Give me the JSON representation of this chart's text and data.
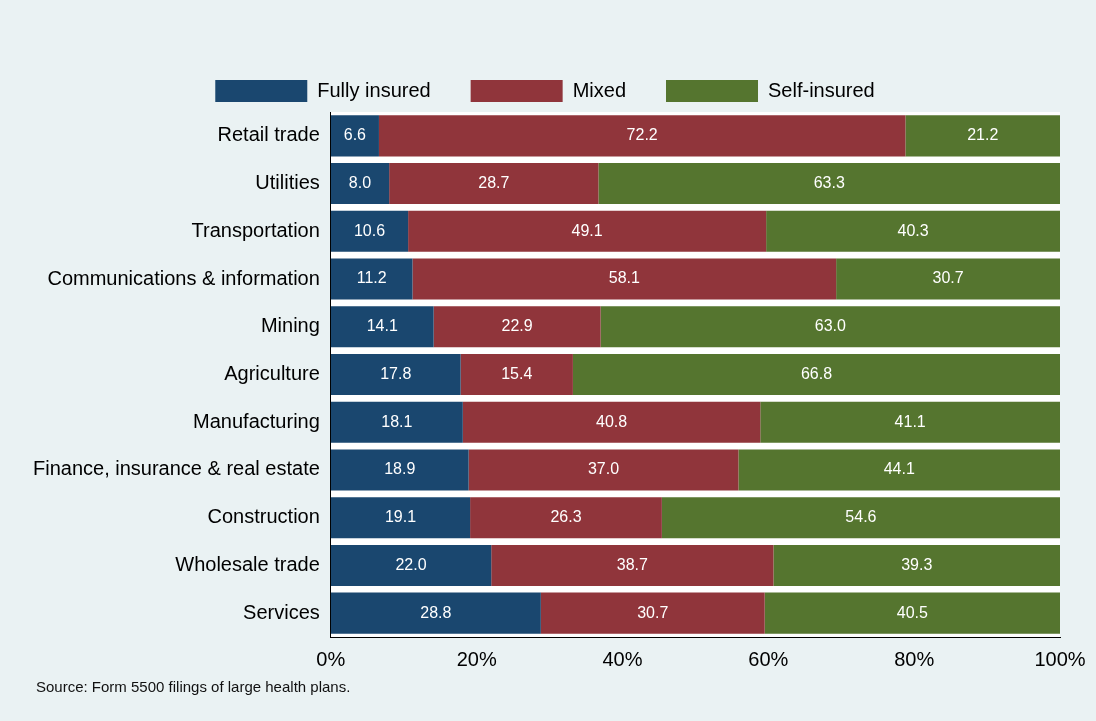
{
  "chart_data": {
    "type": "bar",
    "orientation": "horizontal",
    "stacked": true,
    "legend": "top",
    "categories": [
      "Retail trade",
      "Utilities",
      "Transportation",
      "Communications & information",
      "Mining",
      "Agriculture",
      "Manufacturing",
      "Finance, insurance & real estate",
      "Construction",
      "Wholesale trade",
      "Services"
    ],
    "series": [
      {
        "name": "Fully insured",
        "color": "#1a476f",
        "values": [
          6.6,
          8.0,
          10.6,
          11.2,
          14.1,
          17.8,
          18.1,
          18.9,
          19.1,
          22.0,
          28.8
        ],
        "value_labels": [
          "6.6",
          "8.0",
          "10.6",
          "11.2",
          "14.1",
          "17.8",
          "18.1",
          "18.9",
          "19.1",
          "22.0",
          "28.8"
        ]
      },
      {
        "name": "Mixed",
        "color": "#90353b",
        "values": [
          72.2,
          28.7,
          49.1,
          58.1,
          22.9,
          15.4,
          40.8,
          37.0,
          26.3,
          38.7,
          30.7
        ],
        "value_labels": [
          "72.2",
          "28.7",
          "49.1",
          "58.1",
          "22.9",
          "15.4",
          "40.8",
          "37.0",
          "26.3",
          "38.7",
          "30.7"
        ]
      },
      {
        "name": "Self-insured",
        "color": "#55752f",
        "values": [
          21.2,
          63.3,
          40.3,
          30.7,
          63.0,
          66.8,
          41.1,
          44.1,
          54.6,
          39.3,
          40.5
        ],
        "value_labels": [
          "21.2",
          "63.3",
          "40.3",
          "30.7",
          "63.0",
          "66.8",
          "41.1",
          "44.1",
          "54.6",
          "39.3",
          "40.5"
        ]
      }
    ],
    "xlim": [
      0,
      100
    ],
    "xticks": [
      {
        "value": 0,
        "label": "0%"
      },
      {
        "value": 20,
        "label": "20%"
      },
      {
        "value": 40,
        "label": "40%"
      },
      {
        "value": 60,
        "label": "60%"
      },
      {
        "value": 80,
        "label": "80%"
      },
      {
        "value": 100,
        "label": "100%"
      }
    ],
    "grid": false,
    "annotations": [
      "Source: Form 5500 filings of large health plans."
    ]
  }
}
